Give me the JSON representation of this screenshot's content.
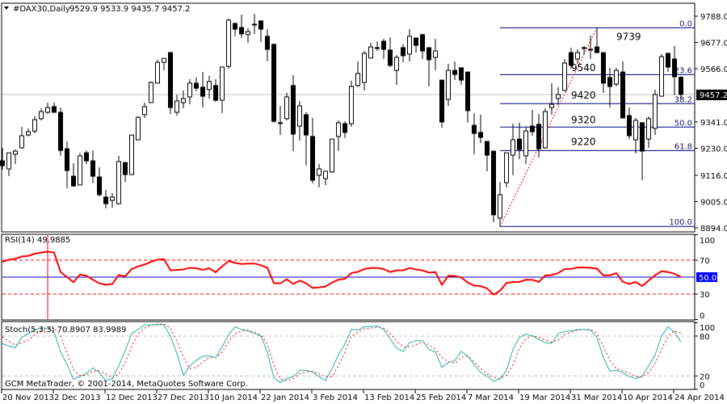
{
  "header": {
    "arrow_icon": "triangle-down-icon",
    "symbol": "#DAX30,Daily",
    "ohlc": "9529.9 9533.9 9435.7 9457.2"
  },
  "footer": {
    "copyright": "GCM MetaTrader, © 2001-2014, MetaQuotes Software Corp."
  },
  "colors": {
    "bull_body": "#ffffff",
    "bear_body": "#000000",
    "candle_outline": "#000000",
    "fib_line": "#000080",
    "trend_line": "#ff0000",
    "rsi": "#ff0000",
    "rsi_mid_line": "#0000cd",
    "stoch_main": "#20b2aa",
    "stoch_signal": "#ff0000",
    "level_grey": "#c0c0c0",
    "price_line": "#c0c0c0"
  },
  "chart_data": [
    {
      "type": "candlestick",
      "title": "#DAX30,Daily",
      "ylim": [
        8894.0,
        9788.0
      ],
      "y_ticks": [
        "9788.0",
        "9677.0",
        "9566.0",
        "9341.0",
        "9230.0",
        "9116.0",
        "9005.0",
        "8894.0"
      ],
      "current_price": "9457.2",
      "x_tick_labels": [
        "20 Nov 2013",
        "2 Dec 2013",
        "12 Dec 2013",
        "27 Dec 2013",
        "10 Jan 2014",
        "22 Jan 2014",
        "3 Feb 2014",
        "13 Feb 2014",
        "25 Feb 2014",
        "7 Mar 2014",
        "19 Mar 2014",
        "31 Mar 2014",
        "10 Apr 2014",
        "24 Apr 2014"
      ],
      "x_tick_every_bars": 8,
      "ohlc_order": [
        "open",
        "high",
        "low",
        "close"
      ],
      "candles": [
        [
          9177,
          9232,
          9140,
          9157
        ],
        [
          9143,
          9211,
          9113,
          9211
        ],
        [
          9205,
          9225,
          9164,
          9218
        ],
        [
          9232,
          9320,
          9228,
          9283
        ],
        [
          9286,
          9314,
          9280,
          9300
        ],
        [
          9303,
          9365,
          9293,
          9351
        ],
        [
          9355,
          9399,
          9348,
          9385
        ],
        [
          9382,
          9423,
          9375,
          9402
        ],
        [
          9406,
          9423,
          9382,
          9382
        ],
        [
          9382,
          9402,
          9198,
          9221
        ],
        [
          9228,
          9259,
          9061,
          9136
        ],
        [
          9112,
          9167,
          9068,
          9071
        ],
        [
          9075,
          9211,
          9075,
          9198
        ],
        [
          9211,
          9221,
          9164,
          9177
        ],
        [
          9177,
          9221,
          9082,
          9112
        ],
        [
          9109,
          9150,
          9027,
          9034
        ],
        [
          9024,
          9054,
          8976,
          8996
        ],
        [
          9010,
          9041,
          8979,
          9024
        ],
        [
          8996,
          9198,
          8993,
          9174
        ],
        [
          9170,
          9170,
          9088,
          9119
        ],
        [
          9119,
          9286,
          9119,
          9286
        ],
        [
          9266,
          9365,
          9266,
          9361
        ],
        [
          9372,
          9423,
          9358,
          9406
        ],
        [
          9423,
          9512,
          9423,
          9508
        ],
        [
          9505,
          9604,
          9505,
          9593
        ],
        [
          9593,
          9610,
          9559,
          9610
        ],
        [
          9634,
          9638,
          9375,
          9402
        ],
        [
          9382,
          9457,
          9368,
          9430
        ],
        [
          9423,
          9474,
          9399,
          9440
        ],
        [
          9447,
          9522,
          9416,
          9505
        ],
        [
          9505,
          9529,
          9471,
          9484
        ],
        [
          9488,
          9552,
          9402,
          9450
        ],
        [
          9478,
          9536,
          9440,
          9512
        ],
        [
          9495,
          9522,
          9426,
          9433
        ],
        [
          9433,
          9573,
          9379,
          9573
        ],
        [
          9576,
          9778,
          9566,
          9771
        ],
        [
          9757,
          9761,
          9703,
          9733
        ],
        [
          9740,
          9795,
          9696,
          9713
        ],
        [
          9710,
          9737,
          9675,
          9723
        ],
        [
          9754,
          9798,
          9713,
          9754
        ],
        [
          9768,
          9771,
          9679,
          9733
        ],
        [
          9703,
          9733,
          9597,
          9648
        ],
        [
          9669,
          9672,
          9338,
          9344
        ],
        [
          9338,
          9409,
          9286,
          9338
        ],
        [
          9355,
          9464,
          9348,
          9447
        ],
        [
          9495,
          9539,
          9218,
          9290
        ],
        [
          9324,
          9430,
          9263,
          9409
        ],
        [
          9372,
          9382,
          9157,
          9286
        ],
        [
          9280,
          9358,
          9082,
          9095
        ],
        [
          9116,
          9164,
          9065,
          9143
        ],
        [
          9102,
          9133,
          9075,
          9133
        ],
        [
          9130,
          9269,
          9126,
          9269
        ],
        [
          9280,
          9348,
          9218,
          9338
        ],
        [
          9334,
          9344,
          9273,
          9297
        ],
        [
          9334,
          9515,
          9321,
          9491
        ],
        [
          9495,
          9597,
          9488,
          9546
        ],
        [
          9508,
          9641,
          9474,
          9631
        ],
        [
          9611,
          9675,
          9611,
          9658
        ],
        [
          9655,
          9682,
          9641,
          9655
        ],
        [
          9682,
          9692,
          9607,
          9648
        ],
        [
          9645,
          9699,
          9573,
          9580
        ],
        [
          9559,
          9624,
          9498,
          9614
        ],
        [
          9655,
          9669,
          9593,
          9621
        ],
        [
          9628,
          9733,
          9597,
          9703
        ],
        [
          9696,
          9696,
          9634,
          9665
        ],
        [
          9710,
          9710,
          9607,
          9641
        ],
        [
          9655,
          9655,
          9491,
          9604
        ],
        [
          9614,
          9692,
          9559,
          9641
        ],
        [
          9518,
          9518,
          9317,
          9341
        ],
        [
          9436,
          9587,
          9409,
          9559
        ],
        [
          9559,
          9597,
          9518,
          9542
        ],
        [
          9570,
          9570,
          9498,
          9518
        ],
        [
          9552,
          9552,
          9338,
          9389
        ],
        [
          9327,
          9379,
          9205,
          9293
        ],
        [
          9297,
          9372,
          9252,
          9276
        ],
        [
          9259,
          9259,
          9133,
          9201
        ],
        [
          9218,
          9218,
          8918,
          8949
        ],
        [
          8935,
          9088,
          8900,
          9034
        ],
        [
          9085,
          9211,
          9065,
          9211
        ],
        [
          9201,
          9334,
          9116,
          9266
        ],
        [
          9269,
          9338,
          9184,
          9225
        ],
        [
          9198,
          9321,
          9164,
          9303
        ],
        [
          9324,
          9392,
          9283,
          9300
        ],
        [
          9331,
          9375,
          9191,
          9228
        ],
        [
          9232,
          9399,
          9228,
          9385
        ],
        [
          9402,
          9505,
          9372,
          9416
        ],
        [
          9440,
          9488,
          9413,
          9457
        ],
        [
          9474,
          9607,
          9471,
          9590
        ],
        [
          9634,
          9655,
          9566,
          9580
        ],
        [
          9607,
          9648,
          9587,
          9634
        ],
        [
          9655,
          9662,
          9624,
          9655
        ],
        [
          9648,
          9706,
          9607,
          9645
        ],
        [
          9658,
          9739,
          9634,
          9634
        ],
        [
          9634,
          9634,
          9464,
          9505
        ],
        [
          9529,
          9570,
          9402,
          9491
        ],
        [
          9501,
          9570,
          9491,
          9559
        ],
        [
          9552,
          9597,
          9358,
          9358
        ],
        [
          9368,
          9402,
          9269,
          9283
        ],
        [
          9266,
          9358,
          9208,
          9348
        ],
        [
          9338,
          9338,
          9095,
          9218
        ],
        [
          9269,
          9365,
          9232,
          9355
        ],
        [
          9314,
          9478,
          9286,
          9457
        ],
        [
          9450,
          9628,
          9450,
          9617
        ],
        [
          9631,
          9631,
          9552,
          9573
        ],
        [
          9607,
          9662,
          9454,
          9532
        ],
        [
          9529.9,
          9533.9,
          9435.7,
          9457.2
        ]
      ],
      "fibonacci": {
        "high": 9739,
        "low": 8900,
        "start_bar": 78,
        "levels": [
          {
            "pct": 0.0,
            "label": "0.0"
          },
          {
            "pct": 23.6,
            "label": "23.6"
          },
          {
            "pct": 38.2,
            "label": "38.2"
          },
          {
            "pct": 50.0,
            "label": "50.0"
          },
          {
            "pct": 61.8,
            "label": "61.8"
          },
          {
            "pct": 100.0,
            "label": "100.0"
          }
        ],
        "trend_line": {
          "from_bar": 78,
          "from_price": 8900,
          "to_bar": 93,
          "to_price": 9739
        }
      },
      "annotations": [
        {
          "text": "9739",
          "bar": 96,
          "price": 9688
        },
        {
          "text": "9540",
          "bar": 89,
          "price": 9556
        },
        {
          "text": "9420",
          "bar": 89,
          "price": 9440
        },
        {
          "text": "9320",
          "bar": 89,
          "price": 9336
        },
        {
          "text": "9220",
          "bar": 89,
          "price": 9244
        }
      ]
    },
    {
      "type": "line",
      "title": "RSI(14) 49.9885",
      "ylim": [
        0,
        100
      ],
      "y_ticks": [
        "100",
        "70",
        "30",
        "0"
      ],
      "levels": [
        70,
        30
      ],
      "mid_level_label": "50.0",
      "vertical_line_bar": 8,
      "series": [
        {
          "values": [
            68,
            70.6,
            71.6,
            74.4,
            75,
            77.6,
            79,
            80,
            79,
            56,
            50,
            44,
            53,
            51.6,
            47,
            42.7,
            41,
            42,
            52.5,
            51,
            59.5,
            62.7,
            65,
            68,
            70.6,
            71.3,
            58,
            58.6,
            59,
            61,
            60.5,
            58.6,
            60.5,
            55.7,
            62.7,
            69,
            66.8,
            65.5,
            66,
            66,
            64,
            61,
            43,
            42.7,
            47.5,
            42,
            46,
            42.7,
            37.3,
            38,
            39,
            43.7,
            47,
            48,
            54.8,
            56.3,
            59.5,
            60.8,
            60.8,
            59.5,
            56,
            58,
            58,
            60.8,
            59,
            58,
            55.4,
            56,
            41,
            51.6,
            51.3,
            49.7,
            43.7,
            40,
            39.5,
            36.7,
            29.4,
            34,
            43,
            44.3,
            44.3,
            47,
            46.8,
            44.3,
            52,
            52.5,
            54.8,
            59.5,
            59.8,
            61.4,
            61.4,
            61,
            60,
            52.2,
            52.2,
            54.8,
            44.6,
            42,
            44.3,
            39.5,
            46,
            52.2,
            57,
            56,
            54,
            50
          ]
        }
      ]
    },
    {
      "type": "line",
      "title": "Stoch(5,3,3) 70.8907 83.9989",
      "ylim": [
        0,
        100
      ],
      "y_ticks": [
        "100",
        "80",
        "20",
        "0"
      ],
      "levels": [
        80,
        20
      ],
      "series": [
        {
          "values": [
            68.6,
            65,
            62.6,
            78,
            84,
            90,
            92,
            92,
            86,
            56,
            37,
            15,
            19,
            24,
            32,
            25,
            13,
            16,
            35,
            58,
            84,
            90,
            97,
            97,
            97,
            97,
            80,
            54,
            21,
            35,
            43.5,
            49.6,
            50,
            47.6,
            64,
            82,
            94,
            90,
            88,
            84,
            80,
            56,
            17,
            10,
            16,
            19,
            28.5,
            28.5,
            26,
            19,
            13,
            31,
            51.6,
            68,
            90,
            89,
            94,
            94,
            95.4,
            90,
            76,
            62,
            56.5,
            70,
            73,
            73,
            60,
            56,
            33,
            40,
            43,
            57,
            50,
            37,
            25,
            20,
            12,
            16,
            28,
            60,
            78,
            83,
            80,
            75,
            70,
            69,
            84,
            87,
            88,
            90,
            90,
            89,
            78,
            47.6,
            27,
            29,
            25,
            19,
            16,
            20,
            35,
            51.6,
            80,
            94,
            86,
            70.9
          ]
        },
        {
          "values": [
            79,
            72,
            66,
            70,
            74,
            82,
            88,
            92,
            92,
            80,
            54,
            29,
            21,
            21,
            27,
            28,
            23,
            17,
            23,
            40,
            64,
            84,
            92,
            96,
            98,
            98,
            92,
            72,
            48,
            31,
            33,
            41,
            47.6,
            47.6,
            56,
            72,
            84,
            88,
            89,
            86,
            82,
            68,
            37,
            15,
            13,
            16,
            23,
            26.5,
            27,
            23,
            19,
            19,
            35,
            56,
            80,
            86,
            91,
            92,
            93,
            92,
            84,
            72,
            64,
            64,
            67,
            71,
            67,
            60,
            48,
            41,
            39,
            48,
            50,
            41,
            31,
            23,
            18,
            16,
            21,
            37,
            62,
            76,
            81,
            78,
            74,
            71,
            74,
            82,
            86,
            89,
            90,
            90,
            84,
            64,
            43.5,
            31,
            28,
            24,
            19,
            18,
            25,
            39,
            60,
            80,
            88,
            84
          ]
        }
      ]
    }
  ]
}
